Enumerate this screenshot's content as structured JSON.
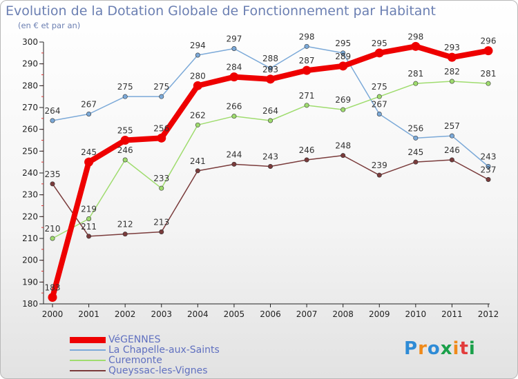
{
  "title": "Evolution de la Dotation Globale de Fonctionnement par Habitant",
  "subtitle": "(en € et par an)",
  "brand": "Proxiti",
  "chart_data": {
    "type": "line",
    "x": [
      "2000",
      "2001",
      "2002",
      "2003",
      "2004",
      "2005",
      "2006",
      "2007",
      "2008",
      "2009",
      "2010",
      "2011",
      "2012"
    ],
    "ylim": [
      180,
      300
    ],
    "yticks": [
      180,
      190,
      200,
      210,
      220,
      230,
      240,
      250,
      260,
      270,
      280,
      290,
      300
    ],
    "grid": false,
    "legend": "bottom-left",
    "series": [
      {
        "name": "VéGENNES",
        "color": "#ee0000",
        "values": [
          183,
          245,
          255,
          256,
          280,
          284,
          283,
          287,
          289,
          295,
          298,
          293,
          296
        ]
      },
      {
        "name": "La Chapelle-aux-Saints",
        "color": "#7ba9d8",
        "values": [
          264,
          267,
          275,
          275,
          294,
          297,
          288,
          298,
          295,
          267,
          256,
          257,
          243
        ]
      },
      {
        "name": "Curemonte",
        "color": "#9fdc6e",
        "values": [
          210,
          219,
          246,
          233,
          262,
          266,
          264,
          271,
          269,
          275,
          281,
          282,
          281
        ]
      },
      {
        "name": "Queyssac-les-Vignes",
        "color": "#7a3b3b",
        "values": [
          235,
          211,
          212,
          213,
          241,
          244,
          243,
          246,
          248,
          239,
          245,
          246,
          237
        ]
      }
    ]
  }
}
